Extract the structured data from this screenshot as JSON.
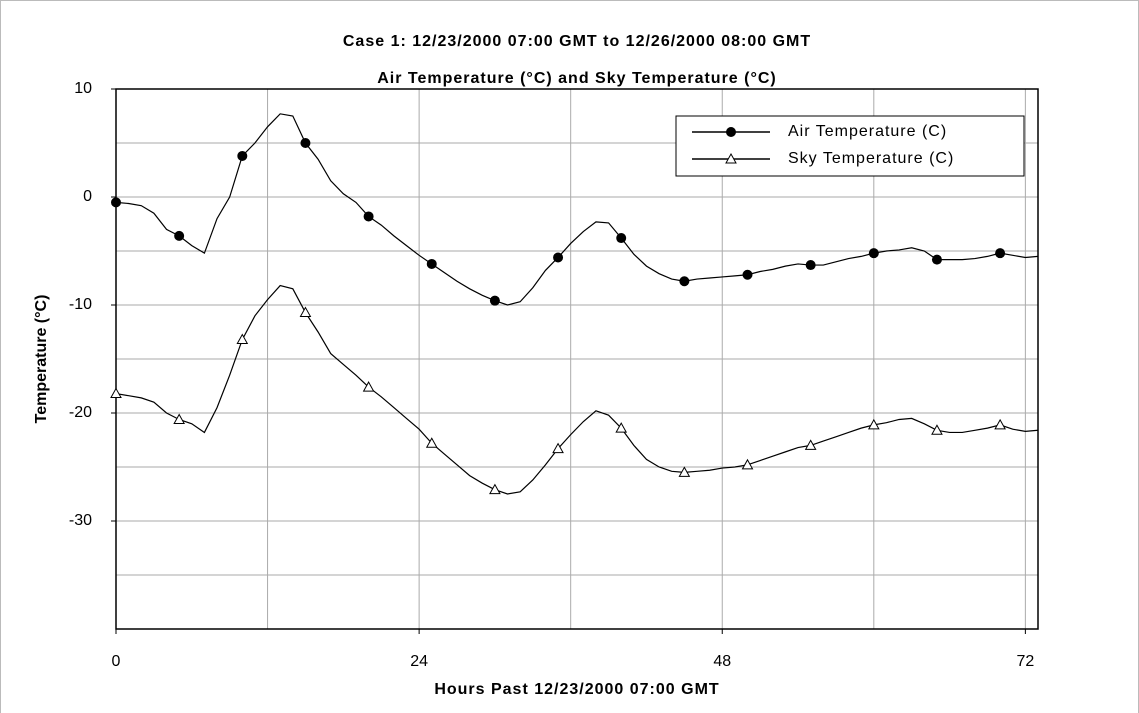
{
  "chart_data": {
    "type": "line",
    "title": "Case 1: 12/23/2000 07:00 GMT to 12/26/2000 08:00 GMT",
    "subtitle": "Air Temperature (°C) and Sky Temperature (°C)",
    "x_label": "Hours Past 12/23/2000 07:00 GMT",
    "y_label": "Temperature (°C)",
    "x": [
      0,
      1,
      2,
      3,
      4,
      5,
      6,
      7,
      8,
      9,
      10,
      11,
      12,
      13,
      14,
      15,
      16,
      17,
      18,
      19,
      20,
      21,
      22,
      23,
      24,
      25,
      26,
      27,
      28,
      29,
      30,
      31,
      32,
      33,
      34,
      35,
      36,
      37,
      38,
      39,
      40,
      41,
      42,
      43,
      44,
      45,
      46,
      47,
      48,
      49,
      50,
      51,
      52,
      53,
      54,
      55,
      56,
      57,
      58,
      59,
      60,
      61,
      62,
      63,
      64,
      65,
      66,
      67,
      68,
      69,
      70,
      71,
      72,
      73
    ],
    "series": [
      {
        "name": "Air Temperature (C)",
        "color": "#000000",
        "marker": "circle",
        "values": [
          -0.5,
          -0.6,
          -0.8,
          -1.5,
          -3,
          -3.6,
          -4.5,
          -5.2,
          -2,
          0,
          3.8,
          5,
          6.5,
          7.7,
          7.5,
          5,
          3.5,
          1.5,
          0.3,
          -0.5,
          -1.8,
          -2.6,
          -3.6,
          -4.5,
          -5.4,
          -6.2,
          -7,
          -7.8,
          -8.5,
          -9.1,
          -9.6,
          -10,
          -9.7,
          -8.4,
          -6.8,
          -5.6,
          -4.3,
          -3.2,
          -2.3,
          -2.4,
          -3.8,
          -5.3,
          -6.4,
          -7.1,
          -7.6,
          -7.8,
          -7.6,
          -7.5,
          -7.4,
          -7.3,
          -7.2,
          -6.9,
          -6.7,
          -6.4,
          -6.2,
          -6.3,
          -6.3,
          -6,
          -5.7,
          -5.5,
          -5.2,
          -5,
          -4.9,
          -4.7,
          -5,
          -5.8,
          -5.8,
          -5.8,
          -5.7,
          -5.5,
          -5.2,
          -5.4,
          -5.6,
          -5.5
        ]
      },
      {
        "name": "Sky Temperature (C)",
        "color": "#000000",
        "marker": "triangle",
        "values": [
          -18.2,
          -18.4,
          -18.6,
          -19,
          -20,
          -20.6,
          -21,
          -21.8,
          -19.5,
          -16.5,
          -13.2,
          -11,
          -9.5,
          -8.2,
          -8.5,
          -10.7,
          -12.5,
          -14.5,
          -15.5,
          -16.5,
          -17.6,
          -18.5,
          -19.5,
          -20.5,
          -21.5,
          -22.8,
          -23.8,
          -24.8,
          -25.8,
          -26.5,
          -27.1,
          -27.5,
          -27.3,
          -26.2,
          -24.8,
          -23.3,
          -22,
          -20.8,
          -19.8,
          -20.2,
          -21.4,
          -23,
          -24.3,
          -25,
          -25.4,
          -25.5,
          -25.4,
          -25.3,
          -25.1,
          -25,
          -24.8,
          -24.4,
          -24,
          -23.6,
          -23.2,
          -23,
          -22.6,
          -22.2,
          -21.8,
          -21.4,
          -21.1,
          -20.9,
          -20.6,
          -20.5,
          -21,
          -21.6,
          -21.8,
          -21.8,
          -21.6,
          -21.4,
          -21.1,
          -21.5,
          -21.7,
          -21.6
        ]
      }
    ],
    "xlim": [
      0,
      73
    ],
    "ylim": [
      -40,
      10
    ],
    "xticks": [
      0,
      24,
      48,
      72
    ],
    "yticks": [
      10,
      0,
      -10,
      -20,
      -30
    ],
    "xgrid": [
      12,
      24,
      36,
      48,
      60,
      72
    ],
    "ygrid": [
      10,
      5,
      0,
      -5,
      -10,
      -15,
      -20,
      -25,
      -30,
      -35
    ],
    "grid": true,
    "legend": "upper right"
  }
}
